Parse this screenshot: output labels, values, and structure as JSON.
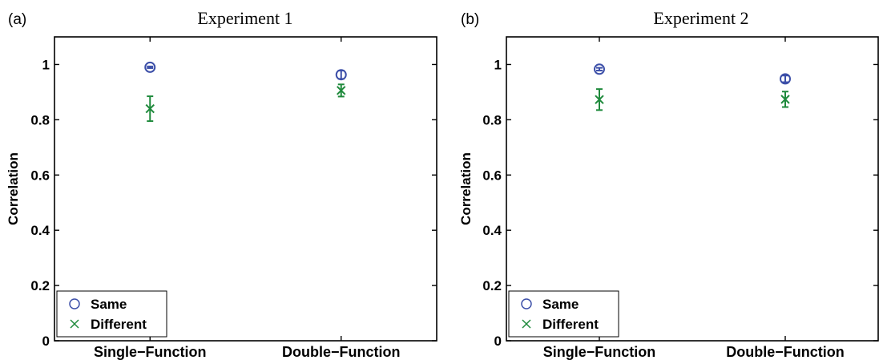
{
  "colors": {
    "same": "#3c4fa8",
    "different": "#1f8a3c",
    "axis": "#000000"
  },
  "chart_data": [
    {
      "type": "scatter",
      "panel_label": "(a)",
      "title": "Experiment 1",
      "xlabel": "",
      "ylabel": "Correlation",
      "categories": [
        "Single−Function",
        "Double−Function"
      ],
      "ylim": [
        0,
        1.1
      ],
      "yticks": [
        0,
        0.2,
        0.4,
        0.6,
        0.8,
        1
      ],
      "ytick_labels": [
        "0",
        "0.2",
        "0.4",
        "0.6",
        "0.8",
        "1"
      ],
      "grid": false,
      "legend_position": "bottom-left",
      "series": [
        {
          "name": "Same",
          "marker": "circle",
          "values": [
            0.99,
            0.963
          ],
          "err": [
            0.003,
            0.015
          ]
        },
        {
          "name": "Different",
          "marker": "x",
          "values": [
            0.84,
            0.906
          ],
          "err": [
            0.045,
            0.022
          ]
        }
      ]
    },
    {
      "type": "scatter",
      "panel_label": "(b)",
      "title": "Experiment 2",
      "xlabel": "",
      "ylabel": "Correlation",
      "categories": [
        "Single−Function",
        "Double−Function"
      ],
      "ylim": [
        0,
        1.1
      ],
      "yticks": [
        0,
        0.2,
        0.4,
        0.6,
        0.8,
        1
      ],
      "ytick_labels": [
        "0",
        "0.2",
        "0.4",
        "0.6",
        "0.8",
        "1"
      ],
      "grid": false,
      "legend_position": "bottom-left",
      "series": [
        {
          "name": "Same",
          "marker": "circle",
          "values": [
            0.983,
            0.948
          ],
          "err": [
            0.005,
            0.012
          ]
        },
        {
          "name": "Different",
          "marker": "x",
          "values": [
            0.873,
            0.874
          ],
          "err": [
            0.038,
            0.028
          ]
        }
      ]
    }
  ]
}
